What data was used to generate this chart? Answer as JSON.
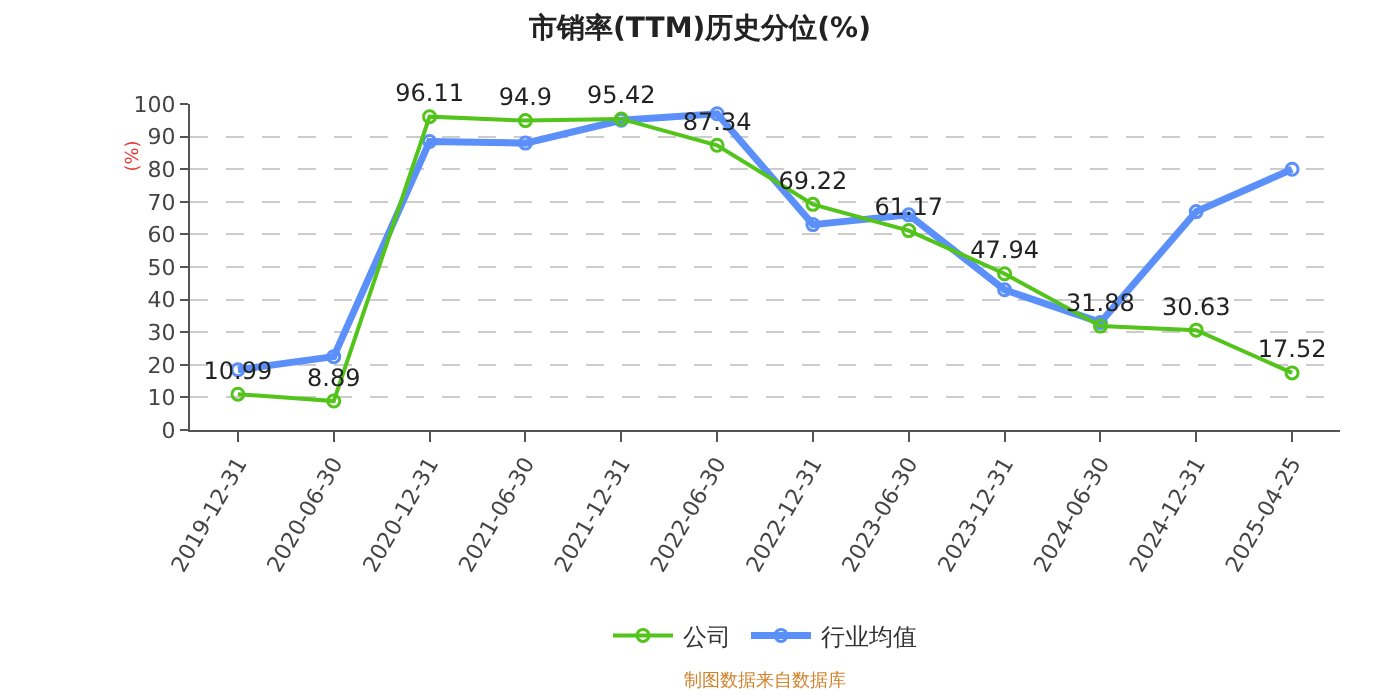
{
  "chart_data": {
    "type": "line",
    "title": "市销率(TTM)历史分位(%)",
    "ylabel": "(%)",
    "categories": [
      "2019-12-31",
      "2020-06-30",
      "2020-12-31",
      "2021-06-30",
      "2021-12-31",
      "2022-06-30",
      "2022-12-31",
      "2023-06-30",
      "2023-12-31",
      "2024-06-30",
      "2024-12-31",
      "2025-04-25"
    ],
    "series": [
      {
        "name": "公司",
        "color": "#52c41a",
        "values": [
          10.99,
          8.89,
          96.11,
          94.9,
          95.42,
          87.34,
          69.22,
          61.17,
          47.94,
          31.88,
          30.63,
          17.52
        ],
        "value_labels": [
          "10.99",
          "8.89",
          "96.11",
          "94.9",
          "95.42",
          "87.34",
          "69.22",
          "61.17",
          "47.94",
          "31.88",
          "30.63",
          "17.52"
        ]
      },
      {
        "name": "行业均值",
        "color": "#5b8ff9",
        "values": [
          18.5,
          22.5,
          88.5,
          88,
          95,
          97,
          63,
          66,
          43,
          33,
          67,
          80
        ]
      }
    ],
    "ylim": [
      0,
      100
    ],
    "yticks": [
      0,
      10,
      20,
      30,
      40,
      50,
      60,
      70,
      80,
      90,
      100
    ],
    "grid": "y",
    "legend": "bottom",
    "marker": "circle",
    "line_style": "solid",
    "annotations": [
      "制图数据来自数据库"
    ]
  }
}
